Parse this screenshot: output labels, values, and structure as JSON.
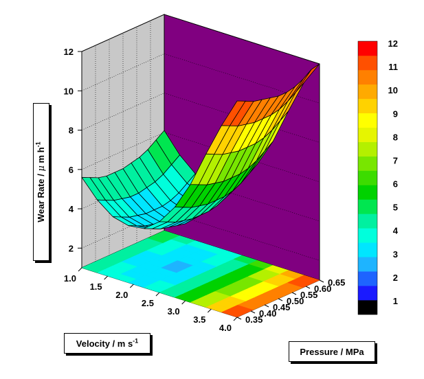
{
  "chart_data": {
    "type": "surface3d",
    "title": "",
    "zlabel": {
      "main": "Wear Rate / ",
      "mu": "μ",
      "unit": " m h",
      "sup": "-1"
    },
    "xlabel": {
      "main": "Velocity / m s",
      "sup": "-1"
    },
    "ylabel": "Pressure / MPa",
    "x_ticks": [
      "1.0",
      "1.5",
      "2.0",
      "2.5",
      "3.0",
      "3.5",
      "4.0"
    ],
    "y_ticks": [
      "0.35",
      "0.40",
      "0.45",
      "0.50",
      "0.55",
      "0.60",
      "0.65"
    ],
    "z_ticks": [
      "2",
      "4",
      "6",
      "8",
      "10",
      "12"
    ],
    "xlim": [
      1.0,
      4.0
    ],
    "ylim": [
      0.35,
      0.65
    ],
    "zlim": [
      1,
      12
    ],
    "x": [
      1.0,
      1.3,
      1.6,
      1.9,
      2.2,
      2.5,
      2.8,
      3.1,
      3.4,
      3.7,
      4.0
    ],
    "y": [
      0.35,
      0.38,
      0.41,
      0.44,
      0.47,
      0.5,
      0.53,
      0.56,
      0.59,
      0.62,
      0.65
    ],
    "z": [
      [
        5.6,
        4.7,
        4.1,
        3.9,
        4.0,
        4.6,
        5.6,
        7.0,
        8.8,
        10.5,
        12.0
      ],
      [
        5.4,
        4.5,
        3.9,
        3.7,
        3.8,
        4.4,
        5.4,
        6.8,
        8.6,
        10.3,
        11.8
      ],
      [
        5.2,
        4.3,
        3.7,
        3.5,
        3.6,
        4.2,
        5.2,
        6.6,
        8.4,
        10.1,
        11.6
      ],
      [
        5.1,
        4.2,
        3.6,
        3.4,
        3.5,
        4.1,
        5.1,
        6.5,
        8.3,
        10.0,
        11.5
      ],
      [
        5.1,
        4.1,
        3.5,
        3.3,
        3.4,
        4.0,
        5.0,
        6.4,
        8.2,
        9.9,
        11.4
      ],
      [
        5.1,
        4.1,
        3.5,
        3.2,
        3.3,
        4.0,
        5.0,
        6.4,
        8.2,
        9.9,
        11.3
      ],
      [
        5.2,
        4.2,
        3.5,
        3.2,
        3.4,
        4.0,
        5.0,
        6.4,
        8.2,
        9.9,
        11.3
      ],
      [
        5.3,
        4.3,
        3.6,
        3.3,
        3.5,
        4.1,
        5.1,
        6.5,
        8.3,
        10.0,
        11.4
      ],
      [
        5.5,
        4.5,
        3.8,
        3.5,
        3.7,
        4.3,
        5.3,
        6.7,
        8.5,
        10.2,
        11.6
      ],
      [
        5.8,
        4.8,
        4.1,
        3.8,
        4.0,
        4.6,
        5.6,
        7.0,
        8.8,
        10.5,
        11.9
      ],
      [
        6.1,
        5.1,
        4.4,
        4.1,
        4.3,
        4.9,
        5.9,
        7.3,
        9.1,
        10.8,
        12.0
      ]
    ],
    "colorbar": {
      "labels": [
        "1",
        "2",
        "3",
        "4",
        "5",
        "6",
        "7",
        "8",
        "9",
        "10",
        "11",
        "12"
      ],
      "colors": [
        "#000000",
        "#1a1aff",
        "#1e64ff",
        "#1eb4ff",
        "#00e6ff",
        "#00ffdc",
        "#00f0a0",
        "#00e650",
        "#00d200",
        "#3cdc00",
        "#78e600",
        "#b4f000",
        "#e6f500",
        "#ffff00",
        "#ffd200",
        "#ffaa00",
        "#ff8000",
        "#ff5000",
        "#ff0000"
      ]
    },
    "wall_color_back_right": "#800080",
    "wall_color_back_left": "#c8c8c8",
    "floor_edge_color": "#909090",
    "grid": true,
    "legend": "right"
  }
}
